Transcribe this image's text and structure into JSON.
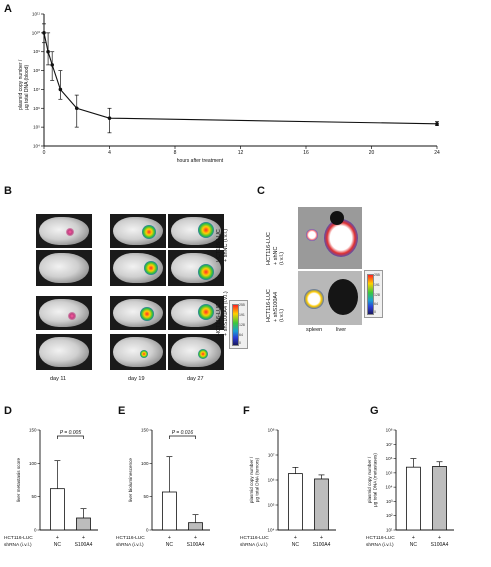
{
  "panels": {
    "A": "A",
    "B": "B",
    "C": "C",
    "D": "D",
    "E": "E",
    "F": "F",
    "G": "G"
  },
  "panel_a": {
    "ylabel_line1": "plasmid copy number /",
    "ylabel_line2": "µg total DNA (blood)",
    "xlabel": "hours after treatment"
  },
  "panel_b": {
    "group1_line1": "HCT116-LUC",
    "group1_line2": "+ shNC (i.v.l.)",
    "group2_line1": "HCT116-LUC",
    "group2_line2": "+ shS100A4 (i.v.l.)",
    "days": [
      "day 11",
      "day 19",
      "day 27"
    ],
    "colorbar_ticks": [
      "255",
      "191",
      "128",
      "64",
      "0"
    ]
  },
  "panel_c": {
    "group1_line1": "HCT116-LUC",
    "group1_line2": "+ shNC",
    "group1_line3": "(i.v.l.)",
    "group2_line1": "HCT116-LUC",
    "group2_line2": "+ shS100A4",
    "group2_line3": "(i.v.l.)",
    "organs": [
      "spleen",
      "liver"
    ],
    "colorbar_ticks": [
      "255",
      "191",
      "128",
      "64",
      "0"
    ]
  },
  "row_labels": {
    "cells": "HCT116-LUC",
    "shrna": "shRNA (i.v.l.)"
  },
  "chart_data": [
    {
      "panel": "A",
      "type": "line",
      "x": [
        0,
        0.25,
        0.5,
        1,
        2,
        4,
        24
      ],
      "y": [
        10000000000.0,
        1000000000.0,
        200000000.0,
        10000000.0,
        1000000.0,
        300000.0,
        150000.0
      ],
      "y_err_upper": [
        30000000000.0,
        10000000000.0,
        1000000000.0,
        100000000.0,
        5000000.0,
        1000000.0,
        200000.0
      ],
      "y_err_lower": [
        3000000000.0,
        200000000.0,
        30000000.0,
        3000000.0,
        100000.0,
        50000.0,
        120000.0
      ],
      "xlabel": "hours after treatment",
      "ylabel": "plasmid copy number / µg total DNA (blood)",
      "xlim": [
        0,
        24
      ],
      "xticks": [
        "0",
        "4",
        "8",
        "12",
        "16",
        "20",
        "24"
      ],
      "ylim": [
        10000.0,
        100000000000.0
      ],
      "yscale": "log",
      "yticks": [
        "10⁴",
        "10⁵",
        "10⁶",
        "10⁷",
        "10⁸",
        "10⁹",
        "10¹⁰",
        "10¹¹"
      ]
    },
    {
      "panel": "D",
      "type": "bar",
      "categories": [
        "NC",
        "S100A4"
      ],
      "cells": [
        "+",
        "+"
      ],
      "values": [
        62,
        18
      ],
      "errors": [
        42,
        14
      ],
      "bar_colors": [
        "#ffffff",
        "#bdbdbd"
      ],
      "ylabel": "liver metastasis score",
      "ylim": [
        0,
        150
      ],
      "yticks": [
        "0",
        "50",
        "100",
        "150"
      ],
      "annotation": "P = 0.005"
    },
    {
      "panel": "E",
      "type": "bar",
      "categories": [
        "NC",
        "S100A4"
      ],
      "cells": [
        "+",
        "+"
      ],
      "values": [
        57,
        11
      ],
      "errors": [
        53,
        12
      ],
      "bar_colors": [
        "#ffffff",
        "#bdbdbd"
      ],
      "ylabel": "liver bioluminescence",
      "ylim": [
        0,
        150
      ],
      "yticks": [
        "0",
        "50",
        "100",
        "150"
      ],
      "annotation": "P = 0.016"
    },
    {
      "panel": "F",
      "type": "bar",
      "categories": [
        "NC",
        "S100A4"
      ],
      "cells": [
        "+",
        "+"
      ],
      "values": [
        1800000.0,
        1100000.0
      ],
      "errors_upper": [
        3200000.0,
        1600000.0
      ],
      "bar_colors": [
        "#ffffff",
        "#bdbdbd"
      ],
      "ylabel": "plasmid copy number / µg total DNA (tumors)",
      "ylim": [
        10000.0,
        100000000.0
      ],
      "yscale": "log",
      "yticks": [
        "10⁴",
        "10⁵",
        "10⁶",
        "10⁷",
        "10⁸"
      ]
    },
    {
      "panel": "G",
      "type": "bar",
      "categories": [
        "NC",
        "S100A4"
      ],
      "cells": [
        "+",
        "+"
      ],
      "values": [
        250000.0,
        280000.0
      ],
      "errors_upper": [
        1000000.0,
        600000.0
      ],
      "bar_colors": [
        "#ffffff",
        "#bdbdbd"
      ],
      "ylabel": "plasmid copy number / µg total DNA (metastases)",
      "ylim": [
        10.0,
        100000000.0
      ],
      "yscale": "log",
      "yticks": [
        "10¹",
        "10²",
        "10³",
        "10⁴",
        "10⁵",
        "10⁶",
        "10⁷",
        "10⁸"
      ]
    }
  ]
}
